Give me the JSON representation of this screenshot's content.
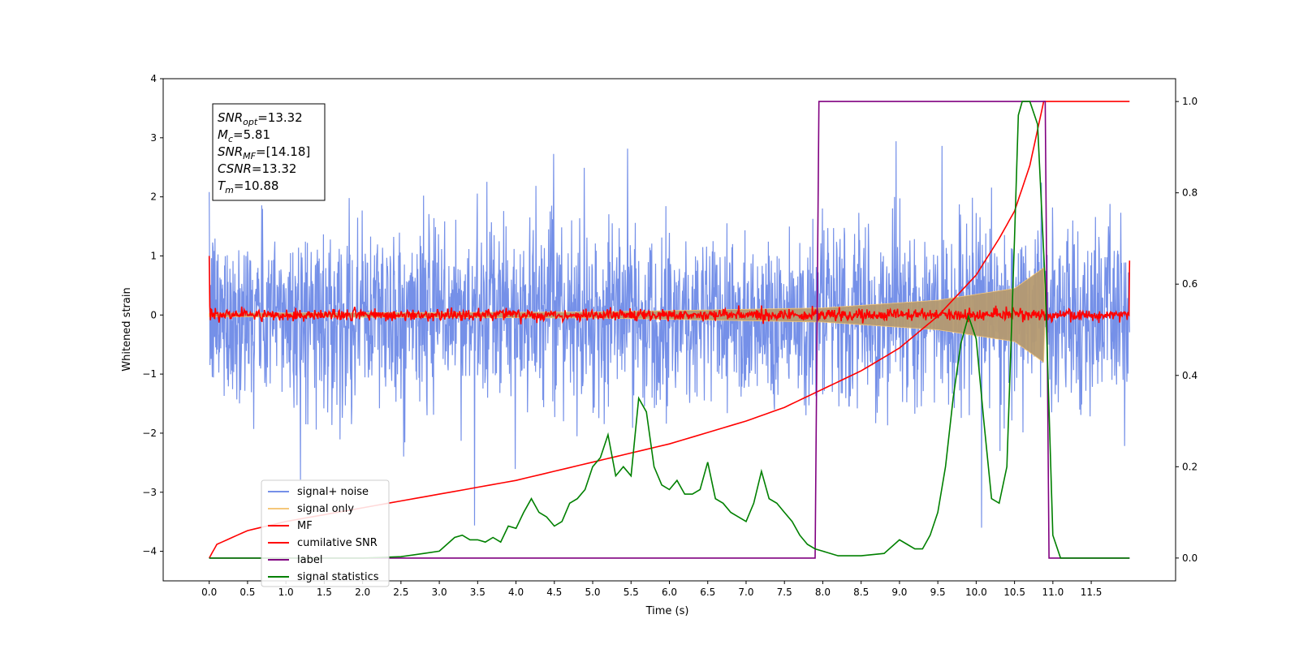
{
  "chart_data": {
    "type": "line",
    "xlabel": "Time (s)",
    "ylabel_left": "Whitened strain",
    "ylabel_right": "",
    "xlim": [
      -0.6,
      12.6
    ],
    "ylim_left": [
      -4.5,
      4.0
    ],
    "ylim_right": [
      -0.05,
      1.05
    ],
    "xticks": [
      "0.0",
      "0.5",
      "1.0",
      "1.5",
      "2.0",
      "2.5",
      "3.0",
      "3.5",
      "4.0",
      "4.5",
      "5.0",
      "5.5",
      "6.0",
      "6.5",
      "7.0",
      "7.5",
      "8.0",
      "8.5",
      "9.0",
      "9.5",
      "10.0",
      "10.5",
      "11.0",
      "11.5"
    ],
    "yticks_left": [
      "4",
      "3",
      "2",
      "1",
      "0",
      "−1",
      "−2",
      "−3",
      "−4"
    ],
    "yticks_right": [
      "0.0",
      "0.2",
      "0.4",
      "0.6",
      "0.8",
      "1.0"
    ],
    "grid": false,
    "legend_position": "lower-left",
    "annotation": {
      "lines": [
        {
          "base": "SNR",
          "sub": "opt",
          "rest": "=13.32"
        },
        {
          "base": "M",
          "sub": "c",
          "rest": "=5.81"
        },
        {
          "base": "SNR",
          "sub": "MF",
          "rest": "=[14.18]"
        },
        {
          "base": "CSNR",
          "sub": "",
          "rest": "=13.32"
        },
        {
          "base": "T",
          "sub": "m",
          "rest": "=10.88"
        }
      ]
    },
    "series": [
      {
        "name": "signal+ noise",
        "axis": "left",
        "color": "#7590e8",
        "noise_std": 0.75,
        "noise_peak": 3.6,
        "x_range": [
          0.0,
          12.0
        ]
      },
      {
        "name": "signal only",
        "axis": "left",
        "color": "#f5c77a",
        "chirp_envelope": [
          [
            0.0,
            0.03
          ],
          [
            5.0,
            0.05
          ],
          [
            8.0,
            0.12
          ],
          [
            9.5,
            0.25
          ],
          [
            10.5,
            0.45
          ],
          [
            10.88,
            0.8
          ],
          [
            10.9,
            0.0
          ]
        ]
      },
      {
        "name": "MF",
        "axis": "left",
        "color": "#ff0000",
        "noise_std": 0.05,
        "start": 1.0,
        "end": 0.92,
        "x_range": [
          0.0,
          12.0
        ]
      },
      {
        "name": "cumilative SNR",
        "axis": "right",
        "color": "#ff0000",
        "points": [
          [
            0.0,
            0.0
          ],
          [
            0.1,
            0.03
          ],
          [
            0.5,
            0.06
          ],
          [
            1.0,
            0.08
          ],
          [
            2.0,
            0.11
          ],
          [
            3.0,
            0.14
          ],
          [
            4.0,
            0.17
          ],
          [
            5.0,
            0.21
          ],
          [
            6.0,
            0.25
          ],
          [
            7.0,
            0.3
          ],
          [
            7.5,
            0.33
          ],
          [
            8.0,
            0.37
          ],
          [
            8.5,
            0.41
          ],
          [
            9.0,
            0.46
          ],
          [
            9.5,
            0.53
          ],
          [
            10.0,
            0.62
          ],
          [
            10.3,
            0.7
          ],
          [
            10.5,
            0.76
          ],
          [
            10.7,
            0.86
          ],
          [
            10.88,
            1.0
          ],
          [
            12.0,
            1.0
          ]
        ]
      },
      {
        "name": "label",
        "axis": "right",
        "color": "#800080",
        "points": [
          [
            0.0,
            0.0
          ],
          [
            7.9,
            0.0
          ],
          [
            7.95,
            1.0
          ],
          [
            10.9,
            1.0
          ],
          [
            10.95,
            0.0
          ],
          [
            12.0,
            0.0
          ]
        ]
      },
      {
        "name": "signal statistics",
        "axis": "right",
        "color": "#008000",
        "points": [
          [
            0.0,
            0.0
          ],
          [
            1.0,
            0.0
          ],
          [
            2.0,
            0.0
          ],
          [
            2.5,
            0.003
          ],
          [
            2.8,
            0.01
          ],
          [
            3.0,
            0.015
          ],
          [
            3.1,
            0.03
          ],
          [
            3.2,
            0.045
          ],
          [
            3.3,
            0.05
          ],
          [
            3.4,
            0.04
          ],
          [
            3.5,
            0.04
          ],
          [
            3.6,
            0.035
          ],
          [
            3.7,
            0.045
          ],
          [
            3.8,
            0.035
          ],
          [
            3.9,
            0.07
          ],
          [
            4.0,
            0.065
          ],
          [
            4.1,
            0.1
          ],
          [
            4.2,
            0.13
          ],
          [
            4.3,
            0.1
          ],
          [
            4.4,
            0.09
          ],
          [
            4.5,
            0.07
          ],
          [
            4.6,
            0.08
          ],
          [
            4.7,
            0.12
          ],
          [
            4.8,
            0.13
          ],
          [
            4.9,
            0.15
          ],
          [
            5.0,
            0.2
          ],
          [
            5.1,
            0.22
          ],
          [
            5.2,
            0.27
          ],
          [
            5.3,
            0.18
          ],
          [
            5.4,
            0.2
          ],
          [
            5.5,
            0.18
          ],
          [
            5.6,
            0.35
          ],
          [
            5.7,
            0.32
          ],
          [
            5.8,
            0.2
          ],
          [
            5.9,
            0.16
          ],
          [
            6.0,
            0.15
          ],
          [
            6.1,
            0.17
          ],
          [
            6.2,
            0.14
          ],
          [
            6.3,
            0.14
          ],
          [
            6.4,
            0.15
          ],
          [
            6.5,
            0.21
          ],
          [
            6.6,
            0.13
          ],
          [
            6.7,
            0.12
          ],
          [
            6.8,
            0.1
          ],
          [
            6.9,
            0.09
          ],
          [
            7.0,
            0.08
          ],
          [
            7.1,
            0.12
          ],
          [
            7.2,
            0.19
          ],
          [
            7.3,
            0.13
          ],
          [
            7.4,
            0.12
          ],
          [
            7.5,
            0.1
          ],
          [
            7.6,
            0.08
          ],
          [
            7.7,
            0.05
          ],
          [
            7.8,
            0.03
          ],
          [
            7.9,
            0.02
          ],
          [
            8.0,
            0.015
          ],
          [
            8.2,
            0.005
          ],
          [
            8.5,
            0.005
          ],
          [
            8.8,
            0.01
          ],
          [
            9.0,
            0.04
          ],
          [
            9.1,
            0.03
          ],
          [
            9.2,
            0.02
          ],
          [
            9.3,
            0.02
          ],
          [
            9.4,
            0.05
          ],
          [
            9.5,
            0.1
          ],
          [
            9.6,
            0.2
          ],
          [
            9.7,
            0.35
          ],
          [
            9.8,
            0.47
          ],
          [
            9.9,
            0.53
          ],
          [
            10.0,
            0.48
          ],
          [
            10.1,
            0.3
          ],
          [
            10.2,
            0.13
          ],
          [
            10.3,
            0.12
          ],
          [
            10.4,
            0.2
          ],
          [
            10.5,
            0.7
          ],
          [
            10.55,
            0.97
          ],
          [
            10.6,
            1.0
          ],
          [
            10.7,
            1.0
          ],
          [
            10.8,
            0.95
          ],
          [
            10.9,
            0.6
          ],
          [
            11.0,
            0.05
          ],
          [
            11.1,
            0.0
          ],
          [
            12.0,
            0.0
          ]
        ]
      }
    ]
  }
}
